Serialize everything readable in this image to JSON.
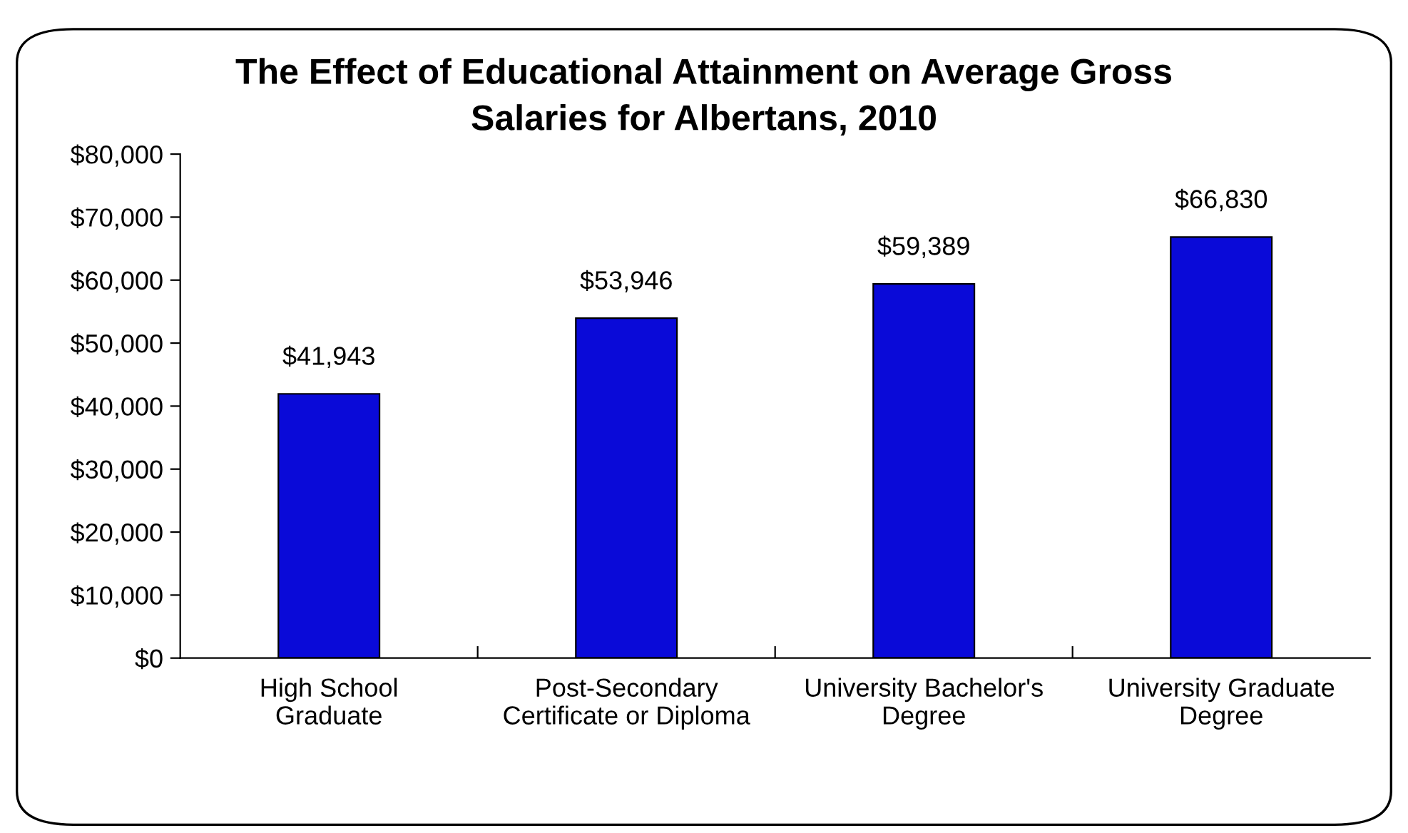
{
  "chart_data": {
    "type": "bar",
    "title": "The Effect of Educational Attainment on Average Gross\nSalaries for Albertans, 2010",
    "categories": [
      "High School\nGraduate",
      "Post-Secondary\nCertificate or Diploma",
      "University Bachelor's\nDegree",
      "University Graduate\nDegree"
    ],
    "values": [
      41943,
      53946,
      59389,
      66830
    ],
    "color": "#0a0ad8",
    "value_labels": [
      "$41,943",
      "$53,946",
      "$59,389",
      "$66,830"
    ],
    "ylim": [
      0,
      80000
    ],
    "yticks": [
      {
        "value": 0,
        "label": "$0"
      },
      {
        "value": 10000,
        "label": "$10,000"
      },
      {
        "value": 20000,
        "label": "$20,000"
      },
      {
        "value": 30000,
        "label": "$30,000"
      },
      {
        "value": 40000,
        "label": "$40,000"
      },
      {
        "value": 50000,
        "label": "$50,000"
      },
      {
        "value": 60000,
        "label": "$60,000"
      },
      {
        "value": 70000,
        "label": "$70,000"
      },
      {
        "value": 80000,
        "label": "$80,000"
      }
    ],
    "grid": false,
    "legend": false
  }
}
